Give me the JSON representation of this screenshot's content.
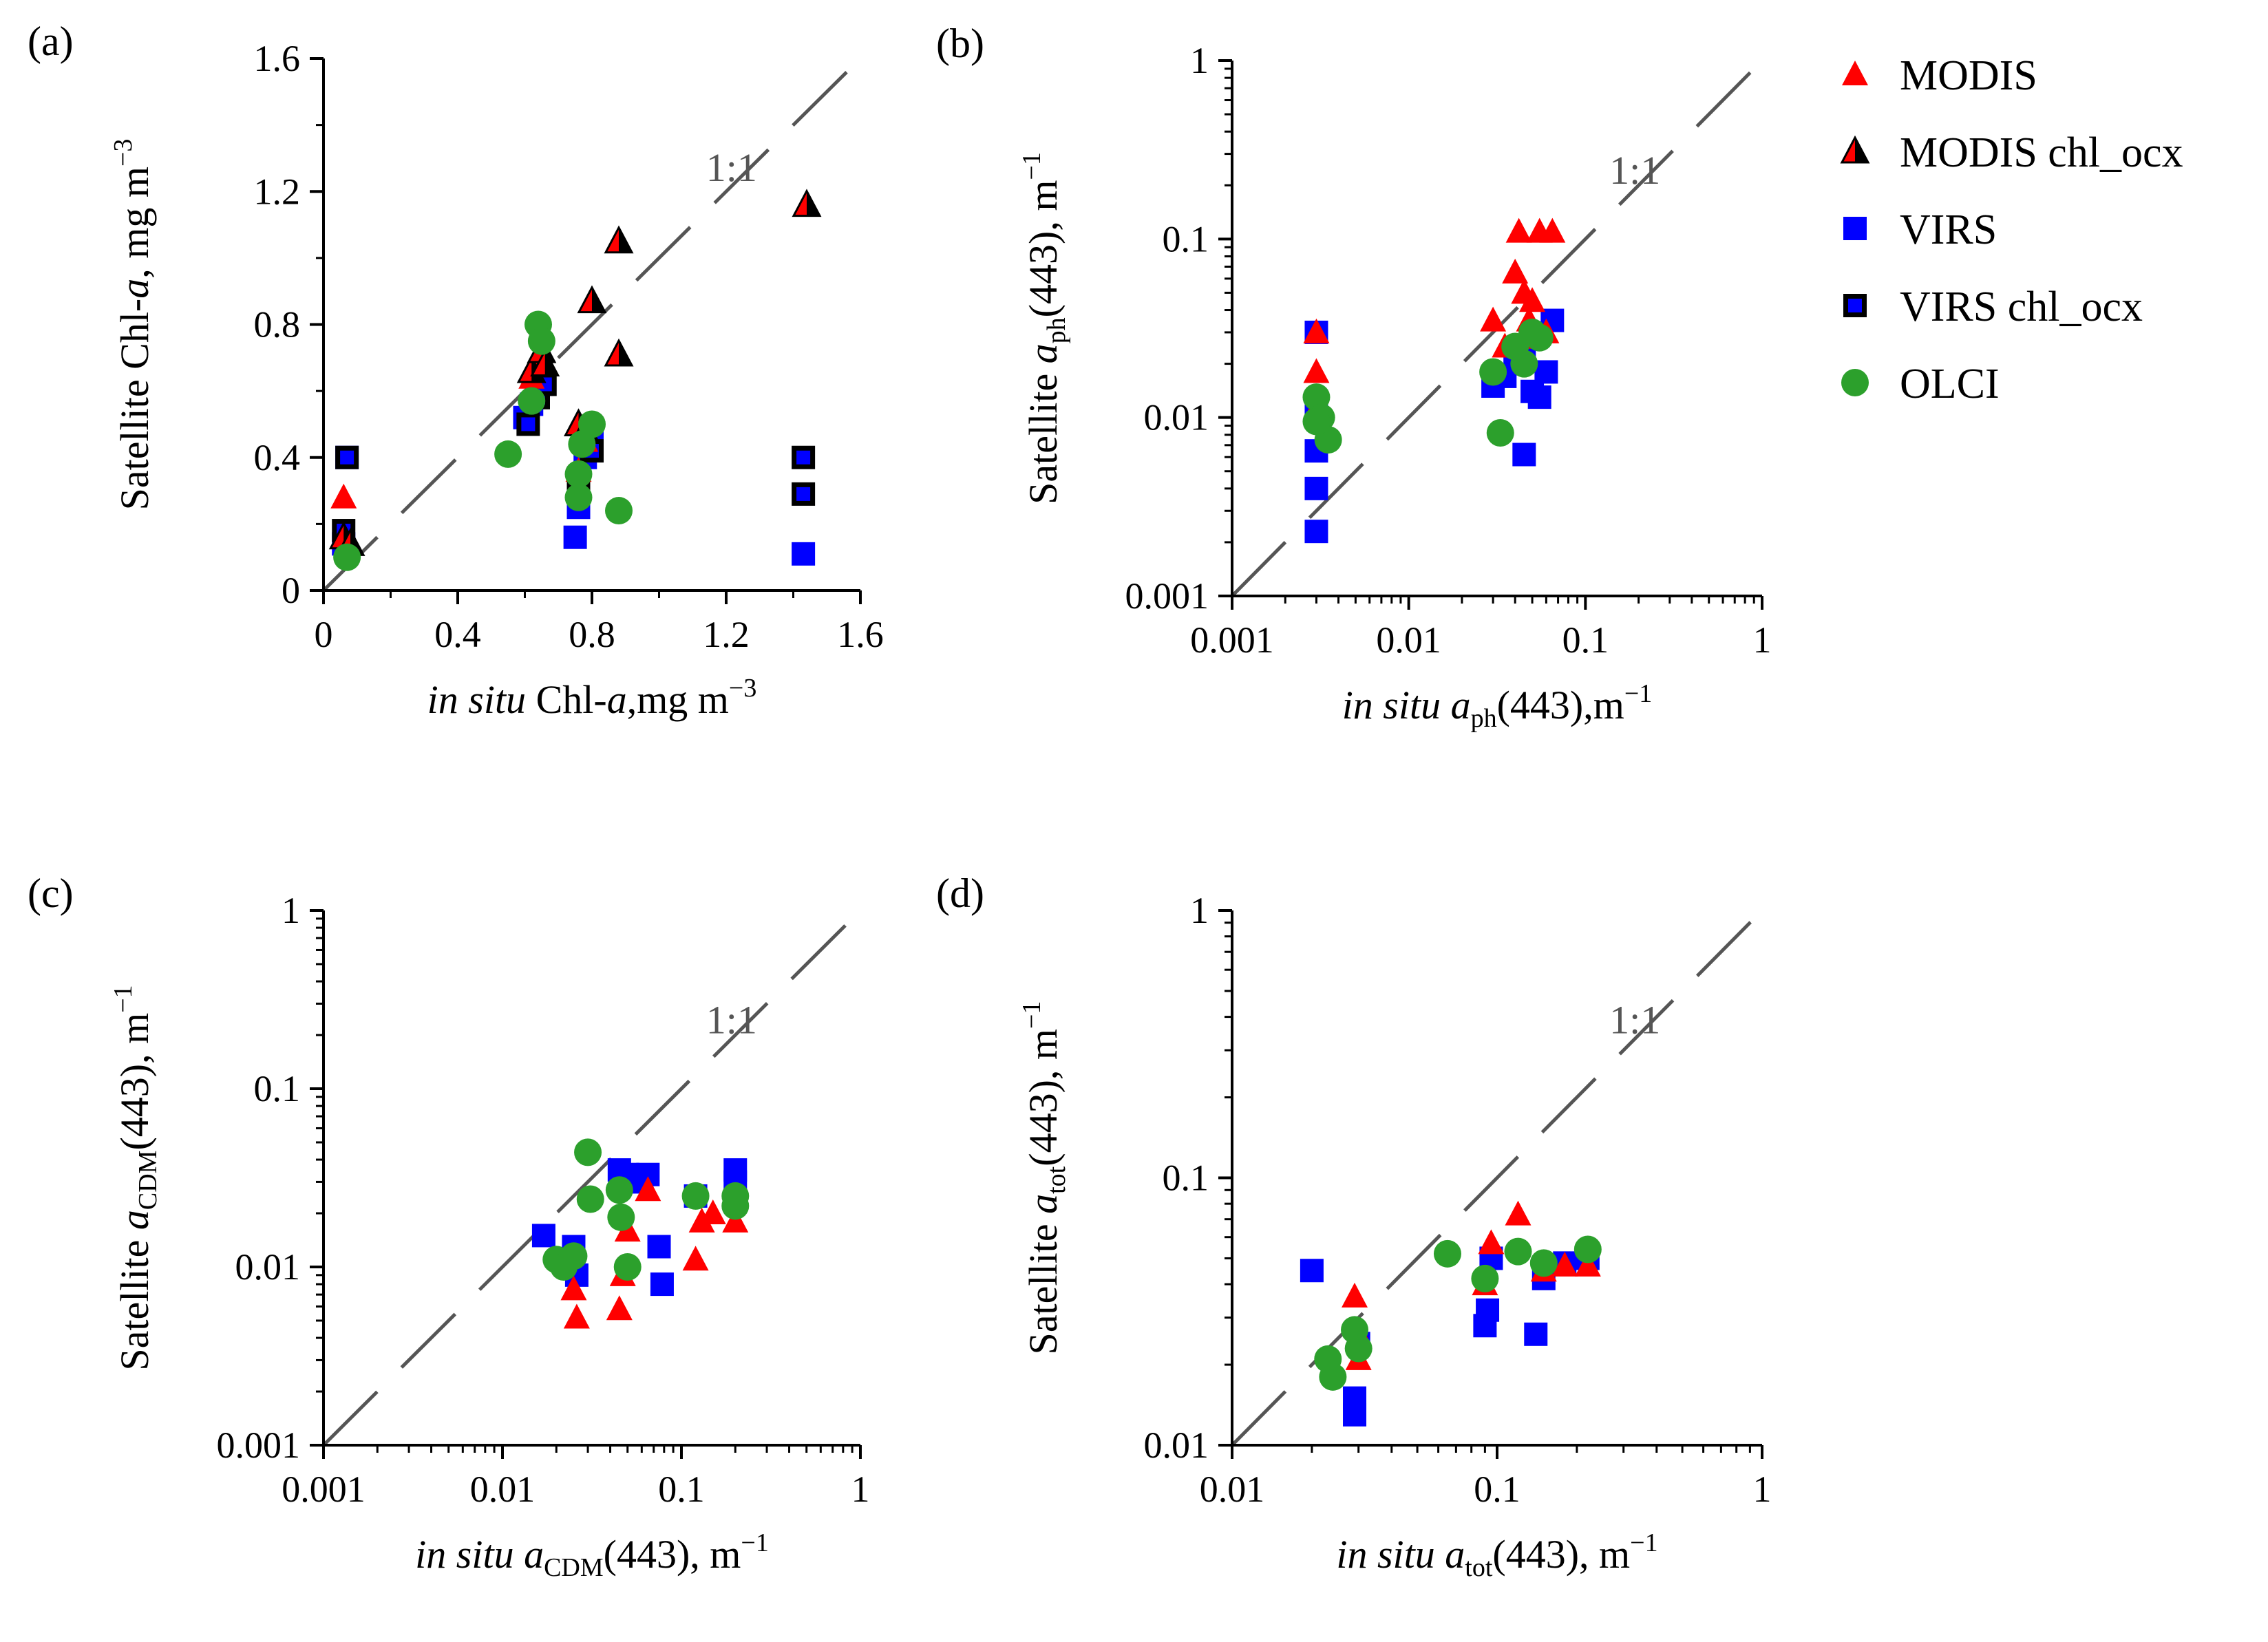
{
  "legend": {
    "entries": [
      {
        "key": "modis",
        "label": "MODIS",
        "color": "#ff0000",
        "marker": "triangle"
      },
      {
        "key": "modis_chl",
        "label": "MODIS chl_ocx",
        "color": "#ff0000",
        "marker": "half-triangle"
      },
      {
        "key": "virs",
        "label": "VIRS",
        "color": "#0000ff",
        "marker": "square"
      },
      {
        "key": "virs_chl",
        "label": "VIRS chl_ocx",
        "color": "#0000ff",
        "marker": "square-open"
      },
      {
        "key": "olci",
        "label": "OLCI",
        "color": "#2ca02c",
        "marker": "circle"
      }
    ]
  },
  "chart_data": [
    {
      "type": "scatter",
      "panel": "(a)",
      "one_to_one": "1:1",
      "scale": "linear",
      "xlim": [
        0,
        1.6
      ],
      "ylim": [
        0,
        1.6
      ],
      "xticks": [
        {
          "v": 0,
          "label": "0"
        },
        {
          "v": 0.4,
          "label": "0.4"
        },
        {
          "v": 0.8,
          "label": "0.8"
        },
        {
          "v": 1.2,
          "label": "1.2"
        },
        {
          "v": 1.6,
          "label": "1.6"
        }
      ],
      "yticks": [
        {
          "v": 0,
          "label": "0"
        },
        {
          "v": 0.4,
          "label": "0.4"
        },
        {
          "v": 0.8,
          "label": "0.8"
        },
        {
          "v": 1.2,
          "label": "1.2"
        },
        {
          "v": 1.6,
          "label": "1.6"
        }
      ],
      "xlabel": {
        "it": "in situ",
        "rest": " Chl-",
        "it2": "a",
        "tail": ",mg m",
        "sup": "−3"
      },
      "ylabel": {
        "pre": "Satellite Chl-",
        "it": "a",
        "rest": ", mg m",
        "sup": "−3"
      },
      "series": [
        {
          "key": "virs",
          "x": [
            0.07,
            0.06,
            0.6,
            0.62,
            0.65,
            0.75,
            0.76,
            0.78,
            0.8,
            1.43
          ],
          "y": [
            0.4,
            0.14,
            0.52,
            0.56,
            0.62,
            0.16,
            0.25,
            0.4,
            0.45,
            0.11
          ]
        },
        {
          "key": "virs_chl",
          "x": [
            0.07,
            0.06,
            0.61,
            0.64,
            0.66,
            0.76,
            0.8,
            1.43,
            1.43
          ],
          "y": [
            0.4,
            0.18,
            0.5,
            0.58,
            0.62,
            0.3,
            0.42,
            0.4,
            0.29
          ]
        },
        {
          "key": "modis",
          "x": [
            0.06,
            0.07,
            0.62,
            0.65,
            0.76,
            0.78
          ],
          "y": [
            0.28,
            0.12,
            0.64,
            0.7,
            0.36,
            0.45
          ]
        },
        {
          "key": "modis_chl",
          "x": [
            0.06,
            0.08,
            0.62,
            0.65,
            0.66,
            0.76,
            0.78,
            0.8,
            0.88,
            0.88,
            1.44
          ],
          "y": [
            0.16,
            0.14,
            0.66,
            0.72,
            0.68,
            0.5,
            0.48,
            0.87,
            1.05,
            0.71,
            1.16
          ]
        },
        {
          "key": "olci",
          "x": [
            0.07,
            0.55,
            0.62,
            0.64,
            0.65,
            0.76,
            0.76,
            0.77,
            0.8,
            0.88
          ],
          "y": [
            0.1,
            0.41,
            0.57,
            0.8,
            0.75,
            0.35,
            0.28,
            0.44,
            0.5,
            0.24
          ]
        }
      ]
    },
    {
      "type": "scatter",
      "panel": "(b)",
      "one_to_one": "1:1",
      "scale": "log",
      "xlim": [
        0.001,
        1
      ],
      "ylim": [
        0.001,
        1
      ],
      "xticks": [
        {
          "v": 0.001,
          "label": "0.001"
        },
        {
          "v": 0.01,
          "label": "0.01"
        },
        {
          "v": 0.1,
          "label": "0.1"
        },
        {
          "v": 1,
          "label": "1"
        }
      ],
      "yticks": [
        {
          "v": 0.001,
          "label": "0.001"
        },
        {
          "v": 0.01,
          "label": "0.01"
        },
        {
          "v": 0.1,
          "label": "0.1"
        },
        {
          "v": 1,
          "label": "1"
        }
      ],
      "xlabel": {
        "it": "in situ",
        "var": "a",
        "sub": "ph",
        "rest": "(443),m",
        "sup": "−1"
      },
      "ylabel": {
        "pre": "Satellite ",
        "var": "a",
        "sub": "ph",
        "rest": "(443), m",
        "sup": "−1"
      },
      "series": [
        {
          "key": "virs",
          "x": [
            0.003,
            0.003,
            0.003,
            0.003,
            0.003,
            0.03,
            0.035,
            0.04,
            0.045,
            0.05,
            0.055,
            0.06,
            0.065,
            0.045
          ],
          "y": [
            0.03,
            0.0065,
            0.004,
            0.0023,
            0.011,
            0.015,
            0.017,
            0.02,
            0.025,
            0.014,
            0.013,
            0.018,
            0.035,
            0.0062
          ]
        },
        {
          "key": "modis",
          "x": [
            0.003,
            0.003,
            0.0031,
            0.03,
            0.035,
            0.04,
            0.042,
            0.045,
            0.048,
            0.05,
            0.055,
            0.06,
            0.065,
            0.045
          ],
          "y": [
            0.03,
            0.018,
            0.012,
            0.035,
            0.025,
            0.065,
            0.11,
            0.05,
            0.035,
            0.045,
            0.11,
            0.03,
            0.11,
            0.028
          ]
        },
        {
          "key": "olci",
          "x": [
            0.003,
            0.0032,
            0.0035,
            0.003,
            0.03,
            0.033,
            0.04,
            0.045,
            0.05,
            0.055
          ],
          "y": [
            0.013,
            0.01,
            0.0075,
            0.0095,
            0.018,
            0.0082,
            0.025,
            0.02,
            0.03,
            0.028
          ]
        }
      ]
    },
    {
      "type": "scatter",
      "panel": "(c)",
      "one_to_one": "1:1",
      "scale": "log",
      "xlim": [
        0.001,
        1
      ],
      "ylim": [
        0.001,
        1
      ],
      "xticks": [
        {
          "v": 0.001,
          "label": "0.001"
        },
        {
          "v": 0.01,
          "label": "0.01"
        },
        {
          "v": 0.1,
          "label": "0.1"
        },
        {
          "v": 1,
          "label": "1"
        }
      ],
      "yticks": [
        {
          "v": 0.001,
          "label": "0.001"
        },
        {
          "v": 0.01,
          "label": "0.01"
        },
        {
          "v": 0.1,
          "label": "0.1"
        },
        {
          "v": 1,
          "label": "1"
        }
      ],
      "xlabel": {
        "it": "in situ",
        "var": "a",
        "sub": "CDM",
        "rest": "(443), m",
        "sup": "−1"
      },
      "ylabel": {
        "pre": "Satellite ",
        "var": "a",
        "sub": "CDM",
        "rest": "(443), m",
        "sup": "−1"
      },
      "series": [
        {
          "key": "virs",
          "x": [
            0.017,
            0.025,
            0.026,
            0.045,
            0.05,
            0.06,
            0.065,
            0.075,
            0.078,
            0.12,
            0.2,
            0.2
          ],
          "y": [
            0.015,
            0.013,
            0.009,
            0.035,
            0.033,
            0.03,
            0.033,
            0.013,
            0.008,
            0.025,
            0.035,
            0.03
          ]
        },
        {
          "key": "modis",
          "x": [
            0.025,
            0.026,
            0.045,
            0.047,
            0.05,
            0.065,
            0.12,
            0.13,
            0.15,
            0.2
          ],
          "y": [
            0.0075,
            0.0052,
            0.0058,
            0.009,
            0.016,
            0.027,
            0.011,
            0.018,
            0.02,
            0.018
          ]
        },
        {
          "key": "olci",
          "x": [
            0.02,
            0.022,
            0.025,
            0.03,
            0.031,
            0.045,
            0.046,
            0.05,
            0.12,
            0.2,
            0.2
          ],
          "y": [
            0.011,
            0.01,
            0.0115,
            0.044,
            0.024,
            0.027,
            0.019,
            0.01,
            0.025,
            0.025,
            0.022
          ]
        }
      ]
    },
    {
      "type": "scatter",
      "panel": "(d)",
      "one_to_one": "1:1",
      "scale": "log",
      "xlim": [
        0.01,
        1
      ],
      "ylim": [
        0.01,
        1
      ],
      "xticks": [
        {
          "v": 0.01,
          "label": "0.01"
        },
        {
          "v": 0.1,
          "label": "0.1"
        },
        {
          "v": 1,
          "label": "1"
        }
      ],
      "yticks": [
        {
          "v": 0.01,
          "label": "0.01"
        },
        {
          "v": 0.1,
          "label": "0.1"
        },
        {
          "v": 1,
          "label": "1"
        }
      ],
      "xlabel": {
        "it": "in situ",
        "var": "a",
        "sub": "tot",
        "rest": "(443), m",
        "sup": "−1"
      },
      "ylabel": {
        "pre": "Satellite ",
        "var": "a",
        "sub": "tot",
        "rest": "(443), m",
        "sup": "−1"
      },
      "series": [
        {
          "key": "virs",
          "x": [
            0.02,
            0.029,
            0.029,
            0.03,
            0.09,
            0.092,
            0.095,
            0.14,
            0.15,
            0.18,
            0.22
          ],
          "y": [
            0.045,
            0.015,
            0.013,
            0.024,
            0.028,
            0.032,
            0.05,
            0.026,
            0.042,
            0.048,
            0.05
          ]
        },
        {
          "key": "modis",
          "x": [
            0.029,
            0.03,
            0.03,
            0.09,
            0.095,
            0.12,
            0.15,
            0.18,
            0.22
          ],
          "y": [
            0.036,
            0.026,
            0.021,
            0.04,
            0.057,
            0.073,
            0.045,
            0.047,
            0.047
          ]
        },
        {
          "key": "olci",
          "x": [
            0.023,
            0.024,
            0.029,
            0.03,
            0.065,
            0.09,
            0.12,
            0.15,
            0.22
          ],
          "y": [
            0.021,
            0.018,
            0.027,
            0.023,
            0.052,
            0.042,
            0.053,
            0.048,
            0.054
          ]
        }
      ]
    }
  ]
}
